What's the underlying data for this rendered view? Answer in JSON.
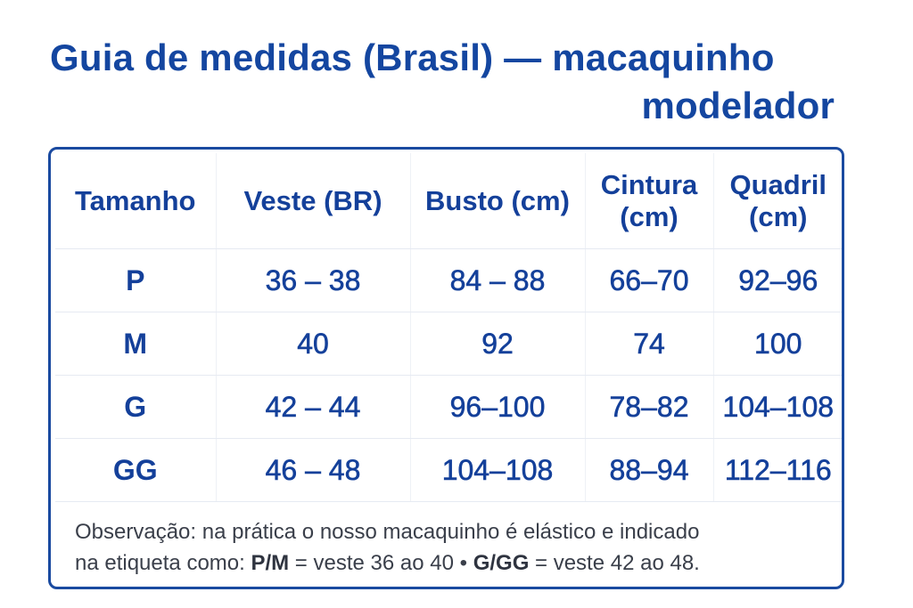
{
  "title": {
    "line1": "Guia de medidas (Brasil) — macaquinho",
    "line2": "modelador"
  },
  "table": {
    "headers": [
      {
        "line1": "Tamanho",
        "line2": ""
      },
      {
        "line1": "Veste (BR)",
        "line2": ""
      },
      {
        "line1": "Busto (cm)",
        "line2": ""
      },
      {
        "line1": "Cintura",
        "line2": "(cm)"
      },
      {
        "line1": "Quadril",
        "line2": "(cm)"
      }
    ],
    "rows": [
      {
        "size": "P",
        "veste": "36 – 38",
        "busto": "84 – 88",
        "cintura": "66–70",
        "quadril": "92–96"
      },
      {
        "size": "M",
        "veste": "40",
        "busto": "92",
        "cintura": "74",
        "quadril": "100"
      },
      {
        "size": "G",
        "veste": "42 – 44",
        "busto": "96–100",
        "cintura": "78–82",
        "quadril": "104–108"
      },
      {
        "size": "GG",
        "veste": "46 – 48",
        "busto": "104–108",
        "cintura": "88–94",
        "quadril": "112–116"
      }
    ]
  },
  "note": {
    "line1": "Observação: na prática o nosso macaquinho é elástico e indicado",
    "line2_prefix": "na etiqueta como: ",
    "pm_label": "P/M",
    "pm_text": " = veste 36 ao 40 • ",
    "ggg_label": "G/GG",
    "ggg_text": " = veste 42 ao 48."
  },
  "colors": {
    "title": "#1446a0",
    "border": "#1a4aa0",
    "table_text": "#14409a",
    "note_text": "#3a3f4a"
  }
}
